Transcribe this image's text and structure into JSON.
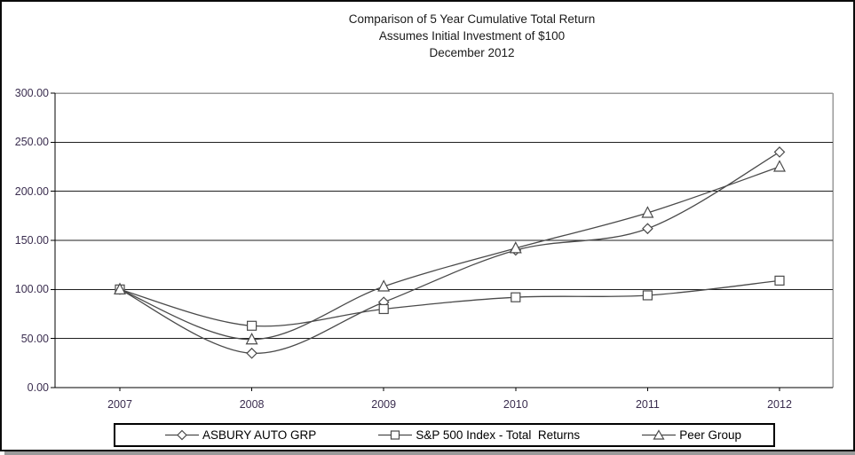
{
  "page": {
    "title_lines": [
      "Comparison of 5 Year Cumulative Total Return",
      "Assumes Initial Investment of $100",
      "December 2012"
    ]
  },
  "chart_data": {
    "type": "line",
    "title": "Comparison of 5 Year Cumulative Total Return",
    "subtitle": "Assumes Initial Investment of $100",
    "period_label": "December 2012",
    "categories": [
      "2007",
      "2008",
      "2009",
      "2010",
      "2011",
      "2012"
    ],
    "series": [
      {
        "name": "ASBURY AUTO GRP",
        "marker": "diamond",
        "values": [
          100,
          35,
          87,
          140,
          162,
          240
        ]
      },
      {
        "name": "S&P 500 Index - Total  Returns",
        "marker": "square",
        "values": [
          100,
          63,
          80,
          92,
          94,
          109
        ]
      },
      {
        "name": "Peer Group",
        "marker": "triangle",
        "values": [
          100,
          49,
          103,
          142,
          178,
          225
        ]
      }
    ],
    "ylim": [
      0,
      300
    ],
    "yticks": [
      0,
      50,
      100,
      150,
      200,
      250,
      300
    ],
    "ytick_labels": [
      "0.00",
      "50.00",
      "100.00",
      "150.00",
      "200.00",
      "250.00",
      "300.00"
    ],
    "grid": "horizontal",
    "legend_position": "bottom",
    "smoothed_lines": true
  },
  "colors": {
    "background": "#ffffff",
    "outer_border": "#0a0a0a",
    "axis": "#000000",
    "gridline": "#1f1f1f",
    "plot_frame": "#9a9a9a",
    "series_line": "#4a4a4a",
    "marker_fill": "#ffffff",
    "tick_label": "#3a2d4f",
    "title": "#1a1a1a",
    "legend_border": "#000000",
    "shadow": "#9a9a9a"
  }
}
